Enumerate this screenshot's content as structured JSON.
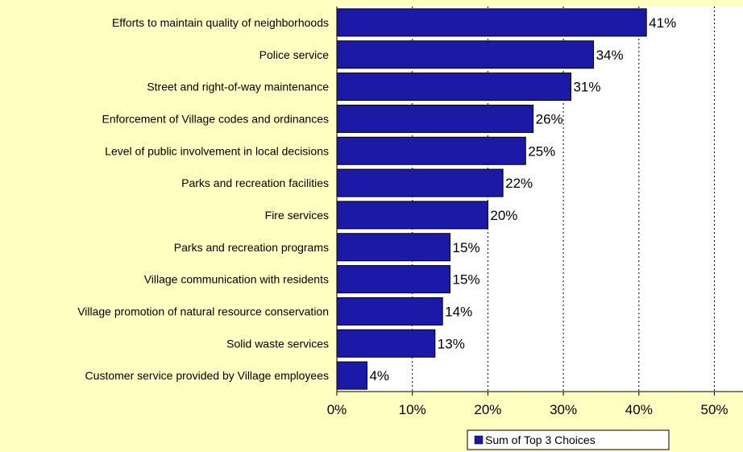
{
  "chart_data": {
    "type": "bar",
    "orientation": "horizontal",
    "categories": [
      "Efforts to maintain quality of neighborhoods",
      "Police service",
      "Street and right-of-way maintenance",
      "Enforcement of Village codes and ordinances",
      "Level of public involvement in local decisions",
      "Parks and recreation facilities",
      "Fire services",
      "Parks and recreation programs",
      "Village communication with residents",
      "Village promotion of natural resource conservation",
      "Solid waste services",
      "Customer service provided by Village employees"
    ],
    "series": [
      {
        "name": "Sum of Top 3 Choices",
        "values": [
          41,
          34,
          31,
          26,
          25,
          22,
          20,
          15,
          15,
          14,
          13,
          4
        ],
        "labels": [
          "41%",
          "34%",
          "31%",
          "26%",
          "25%",
          "22%",
          "20%",
          "15%",
          "15%",
          "14%",
          "13%",
          "4%"
        ]
      }
    ],
    "xlim": [
      0,
      50
    ],
    "xticks": [
      0,
      10,
      20,
      30,
      40,
      50
    ],
    "xtick_labels": [
      "0%",
      "10%",
      "20%",
      "30%",
      "40%",
      "50%"
    ],
    "grid": "vertical-dashed",
    "legend_position": "bottom-right",
    "colors": {
      "bar": "#1A1AA6",
      "background": "#FFFFC0",
      "plot_background": "#FFFFFF"
    }
  }
}
